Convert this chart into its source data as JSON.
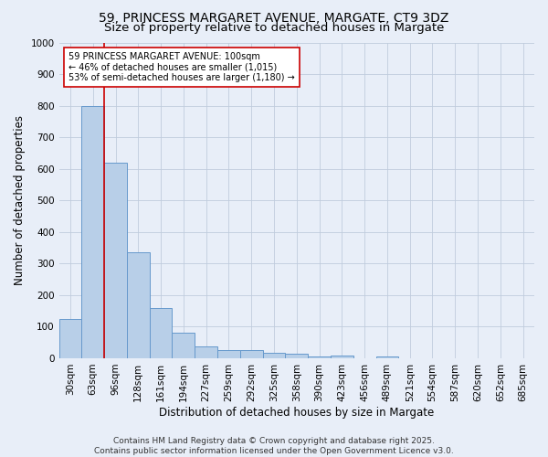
{
  "title_line1": "59, PRINCESS MARGARET AVENUE, MARGATE, CT9 3DZ",
  "title_line2": "Size of property relative to detached houses in Margate",
  "xlabel": "Distribution of detached houses by size in Margate",
  "ylabel": "Number of detached properties",
  "bar_labels": [
    "30sqm",
    "63sqm",
    "96sqm",
    "128sqm",
    "161sqm",
    "194sqm",
    "227sqm",
    "259sqm",
    "292sqm",
    "325sqm",
    "358sqm",
    "390sqm",
    "423sqm",
    "456sqm",
    "489sqm",
    "521sqm",
    "554sqm",
    "587sqm",
    "620sqm",
    "652sqm",
    "685sqm"
  ],
  "bar_values": [
    125,
    800,
    620,
    335,
    160,
    82,
    38,
    27,
    27,
    17,
    13,
    7,
    8,
    0,
    6,
    0,
    0,
    0,
    0,
    0,
    0
  ],
  "bar_color": "#b8cfe8",
  "bar_edgecolor": "#6699cc",
  "red_line_index": 2,
  "red_line_color": "#cc0000",
  "ylim_max": 1000,
  "yticks": [
    0,
    100,
    200,
    300,
    400,
    500,
    600,
    700,
    800,
    900,
    1000
  ],
  "annotation_text": "59 PRINCESS MARGARET AVENUE: 100sqm\n← 46% of detached houses are smaller (1,015)\n53% of semi-detached houses are larger (1,180) →",
  "annotation_box_edgecolor": "#cc0000",
  "footer_line1": "Contains HM Land Registry data © Crown copyright and database right 2025.",
  "footer_line2": "Contains public sector information licensed under the Open Government Licence v3.0.",
  "background_color": "#e8eef8",
  "plot_bg_color": "#e8eef8",
  "grid_color": "#c0ccdd",
  "title1_fontsize": 10,
  "title2_fontsize": 9.5,
  "axis_label_fontsize": 8.5,
  "tick_fontsize": 7.5,
  "annotation_fontsize": 7,
  "footer_fontsize": 6.5
}
